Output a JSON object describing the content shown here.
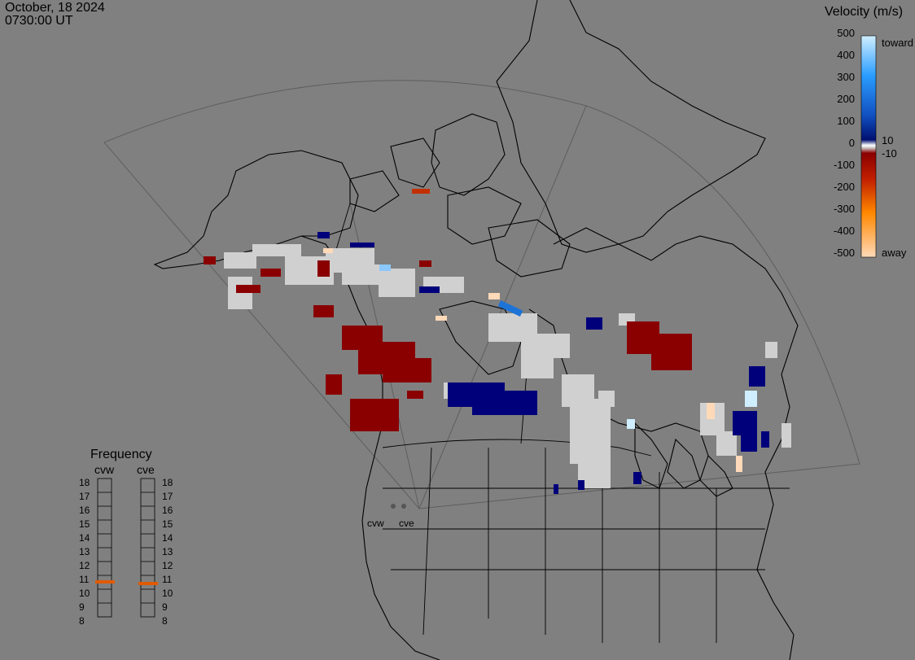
{
  "header": {
    "date": "October, 18 2024",
    "time": "0730:00 UT"
  },
  "velocity_scale": {
    "title": "Velocity (m/s)",
    "ticks": [
      "500",
      "400",
      "300",
      "200",
      "100",
      "0",
      "-100",
      "-200",
      "-300",
      "-400",
      "-500"
    ],
    "extra_labels": {
      "pos_small": "10",
      "neg_small": "-10",
      "top": "toward",
      "bottom": "away"
    },
    "colors": {
      "toward_max": "#cfeeff",
      "toward_mid": "#1e73d6",
      "toward_min": "#001a8a",
      "zero": "#d0d0d0",
      "away_min": "#8a0000",
      "away_mid": "#e05a00",
      "away_max": "#ffd9b8"
    }
  },
  "frequency": {
    "title": "Frequency",
    "radars": [
      {
        "label": "cvw",
        "selected_mhz": 10.9
      },
      {
        "label": "cve",
        "selected_mhz": 10.8
      }
    ],
    "ticks": [
      "18",
      "17",
      "16",
      "15",
      "14",
      "13",
      "12",
      "11",
      "10",
      "9",
      "8"
    ]
  },
  "sites": [
    "cvw",
    "cve"
  ],
  "colors": {
    "background": "#808080",
    "ground_scatter": "#d0d0d0",
    "coast": "#000000",
    "fov": "#606060"
  }
}
